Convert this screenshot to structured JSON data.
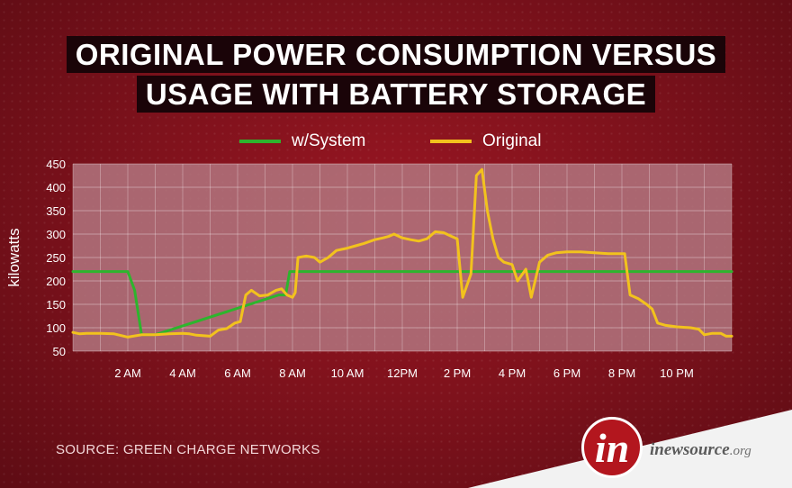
{
  "header": {
    "title_line1": "ORIGINAL POWER CONSUMPTION VERSUS",
    "title_line2": "USAGE WITH BATTERY STORAGE"
  },
  "chart_data": {
    "type": "line",
    "title": "ORIGINAL POWER CONSUMPTION VERSUS USAGE WITH BATTERY STORAGE",
    "ylabel": "kilowatts",
    "xlabel": "",
    "ylim": [
      50,
      450
    ],
    "xlim": [
      0,
      24
    ],
    "y_ticks": [
      50,
      100,
      150,
      200,
      250,
      300,
      350,
      400,
      450
    ],
    "x_ticks": [
      {
        "x": 2,
        "label": "2 AM"
      },
      {
        "x": 4,
        "label": "4 AM"
      },
      {
        "x": 6,
        "label": "6 AM"
      },
      {
        "x": 8,
        "label": "8 AM"
      },
      {
        "x": 10,
        "label": "10 AM"
      },
      {
        "x": 12,
        "label": "12PM"
      },
      {
        "x": 14,
        "label": "2 PM"
      },
      {
        "x": 16,
        "label": "4 PM"
      },
      {
        "x": 18,
        "label": "6 PM"
      },
      {
        "x": 20,
        "label": "8 PM"
      },
      {
        "x": 22,
        "label": "10 PM"
      }
    ],
    "grid": true,
    "legend": "top-center",
    "series": [
      {
        "name": "w/System",
        "color": "#2db52d",
        "points": [
          [
            0,
            220
          ],
          [
            2,
            220
          ],
          [
            2.25,
            180
          ],
          [
            2.5,
            85
          ],
          [
            3,
            85
          ],
          [
            7.5,
            170
          ],
          [
            7.75,
            170
          ],
          [
            7.9,
            220
          ],
          [
            8.1,
            220
          ],
          [
            24,
            220
          ]
        ]
      },
      {
        "name": "Original",
        "color": "#f2c21d",
        "points": [
          [
            0,
            90
          ],
          [
            0.25,
            87
          ],
          [
            0.5,
            88
          ],
          [
            1,
            88
          ],
          [
            1.5,
            87
          ],
          [
            2,
            80
          ],
          [
            2.5,
            85
          ],
          [
            3,
            85
          ],
          [
            3.5,
            87
          ],
          [
            4,
            88
          ],
          [
            4.25,
            87
          ],
          [
            4.5,
            84
          ],
          [
            5,
            82
          ],
          [
            5.3,
            95
          ],
          [
            5.6,
            98
          ],
          [
            5.9,
            110
          ],
          [
            6.1,
            113
          ],
          [
            6.3,
            170
          ],
          [
            6.5,
            180
          ],
          [
            6.8,
            168
          ],
          [
            7.1,
            170
          ],
          [
            7.4,
            180
          ],
          [
            7.6,
            183
          ],
          [
            7.8,
            170
          ],
          [
            8.0,
            165
          ],
          [
            8.1,
            175
          ],
          [
            8.2,
            250
          ],
          [
            8.5,
            253
          ],
          [
            8.8,
            250
          ],
          [
            9.0,
            240
          ],
          [
            9.3,
            250
          ],
          [
            9.6,
            265
          ],
          [
            10.0,
            270
          ],
          [
            10.3,
            275
          ],
          [
            10.6,
            280
          ],
          [
            11.0,
            288
          ],
          [
            11.3,
            292
          ],
          [
            11.5,
            295
          ],
          [
            11.7,
            300
          ],
          [
            12.0,
            292
          ],
          [
            12.3,
            288
          ],
          [
            12.6,
            285
          ],
          [
            12.9,
            290
          ],
          [
            13.2,
            305
          ],
          [
            13.5,
            303
          ],
          [
            13.8,
            295
          ],
          [
            14.0,
            290
          ],
          [
            14.2,
            165
          ],
          [
            14.5,
            215
          ],
          [
            14.7,
            425
          ],
          [
            14.9,
            438
          ],
          [
            15.1,
            350
          ],
          [
            15.3,
            290
          ],
          [
            15.5,
            250
          ],
          [
            15.7,
            240
          ],
          [
            16.0,
            235
          ],
          [
            16.2,
            200
          ],
          [
            16.5,
            225
          ],
          [
            16.7,
            165
          ],
          [
            17.0,
            240
          ],
          [
            17.3,
            255
          ],
          [
            17.6,
            260
          ],
          [
            18.0,
            262
          ],
          [
            18.5,
            262
          ],
          [
            19.0,
            260
          ],
          [
            19.5,
            258
          ],
          [
            20.1,
            258
          ],
          [
            20.3,
            170
          ],
          [
            20.6,
            162
          ],
          [
            20.9,
            150
          ],
          [
            21.1,
            140
          ],
          [
            21.3,
            110
          ],
          [
            21.6,
            105
          ],
          [
            22.0,
            102
          ],
          [
            22.5,
            100
          ],
          [
            22.8,
            97
          ],
          [
            23.0,
            85
          ],
          [
            23.3,
            88
          ],
          [
            23.6,
            88
          ],
          [
            23.8,
            82
          ],
          [
            24.0,
            82
          ]
        ]
      }
    ],
    "colors": {
      "plot_bg": "#b2767f",
      "grid": "#ffffff",
      "text": "#ffffff"
    }
  },
  "footer": {
    "source": "SOURCE: GREEN CHARGE NETWORKS",
    "brand_letter": "in",
    "brand_name": "inewsource",
    "brand_suffix": ".org"
  }
}
